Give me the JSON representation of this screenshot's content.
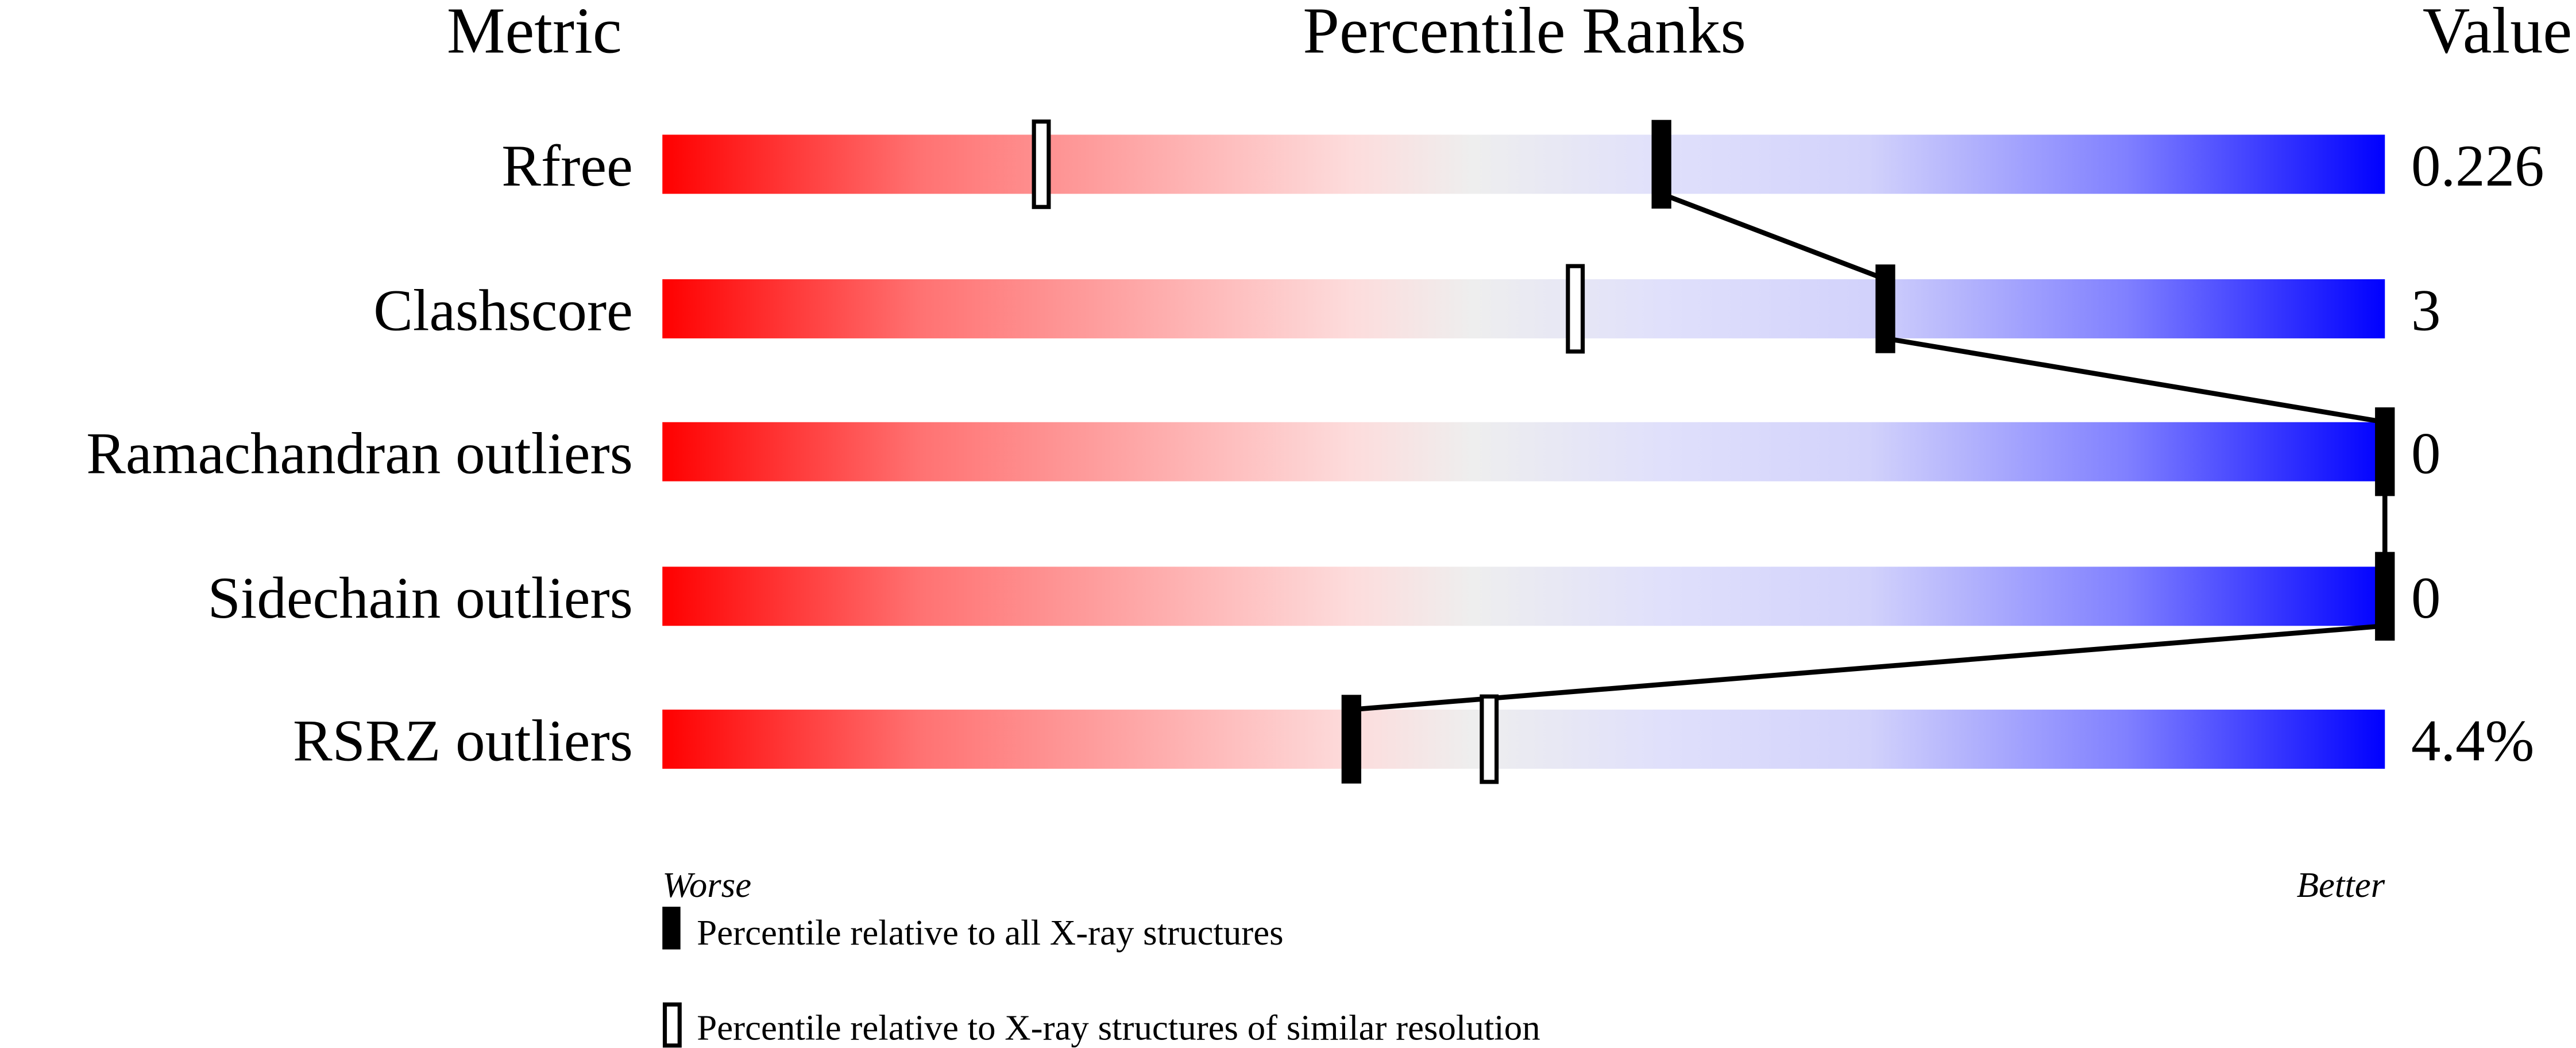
{
  "chart_data": {
    "type": "percentile-bar",
    "headers": {
      "metric": "Metric",
      "ranks": "Percentile Ranks",
      "value": "Value"
    },
    "xlim": [
      0,
      100
    ],
    "axis_labels": {
      "left": "Worse",
      "right": "Better"
    },
    "metrics": [
      {
        "name": "Rfree",
        "value": "0.226",
        "percentile_all": 58,
        "percentile_similar": 22
      },
      {
        "name": "Clashscore",
        "value": "3",
        "percentile_all": 71,
        "percentile_similar": 53
      },
      {
        "name": "Ramachandran outliers",
        "value": "0",
        "percentile_all": 100,
        "percentile_similar": null
      },
      {
        "name": "Sidechain outliers",
        "value": "0",
        "percentile_all": 100,
        "percentile_similar": null
      },
      {
        "name": "RSRZ outliers",
        "value": "4.4%",
        "percentile_all": 40,
        "percentile_similar": 48
      }
    ],
    "legend": [
      {
        "marker": "filled",
        "label": "Percentile relative to all X-ray structures"
      },
      {
        "marker": "open",
        "label": "Percentile relative to X-ray structures of similar resolution"
      }
    ],
    "colors": {
      "worse": "#ff0000",
      "middle": "#eeeeee",
      "better": "#0000ff"
    }
  }
}
